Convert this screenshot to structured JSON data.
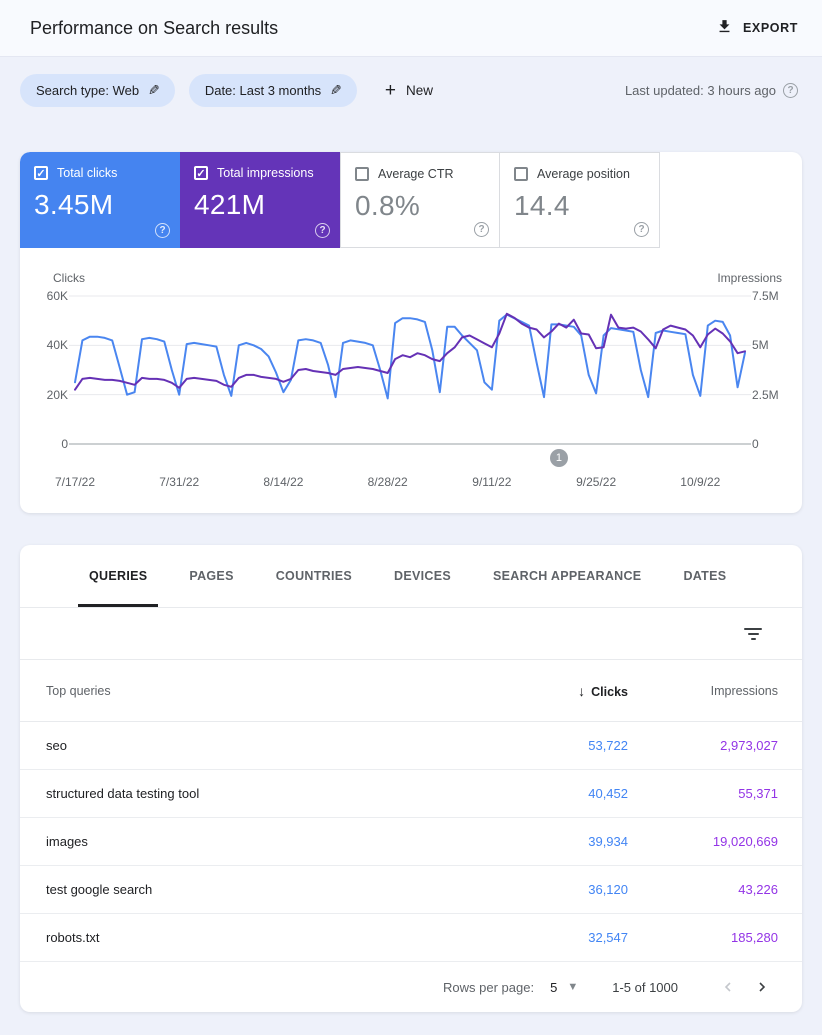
{
  "header": {
    "title": "Performance on Search results",
    "export_label": "EXPORT"
  },
  "filters": {
    "search_type_chip": "Search type: Web",
    "date_chip": "Date: Last 3 months",
    "new_label": "New",
    "last_updated": "Last updated: 3 hours ago"
  },
  "metrics": {
    "items": [
      {
        "label": "Total clicks",
        "value": "3.45M",
        "selected": true,
        "color": "#4584f0"
      },
      {
        "label": "Total impressions",
        "value": "421M",
        "selected": true,
        "color": "#6434b8"
      },
      {
        "label": "Average CTR",
        "value": "0.8%",
        "selected": false,
        "color": "#ffffff"
      },
      {
        "label": "Average position",
        "value": "14.4",
        "selected": false,
        "color": "#ffffff"
      }
    ]
  },
  "chart_data": {
    "type": "line",
    "x_tick_labels": [
      "7/17/22",
      "7/31/22",
      "8/14/22",
      "8/28/22",
      "9/11/22",
      "9/25/22",
      "10/9/22"
    ],
    "x_range_days": 91,
    "left_axis": {
      "title": "Clicks",
      "ticks": [
        "60K",
        "40K",
        "20K",
        "0"
      ],
      "max": 60000
    },
    "right_axis": {
      "title": "Impressions",
      "ticks": [
        "7.5M",
        "5M",
        "2.5M",
        "0"
      ],
      "max": 7500000
    },
    "grid": "horizontal-only",
    "legend_position": "none",
    "annotation_badge": "1",
    "annotation_day_index": 65,
    "series": [
      {
        "name": "Total clicks",
        "axis": "left",
        "color": "#4a86f0",
        "values": [
          25000,
          42000,
          43500,
          43500,
          43000,
          42000,
          31000,
          20000,
          21000,
          42500,
          43000,
          42500,
          41500,
          30000,
          20000,
          40500,
          41000,
          40500,
          40000,
          39500,
          28000,
          19500,
          40000,
          41000,
          40000,
          38500,
          35500,
          29000,
          21000,
          26000,
          42000,
          42500,
          42000,
          41000,
          32000,
          19000,
          41000,
          42000,
          41500,
          41000,
          40000,
          30000,
          18500,
          49000,
          51000,
          51000,
          50500,
          49500,
          38000,
          21000,
          47500,
          47500,
          44000,
          41000,
          38000,
          25000,
          22000,
          50000,
          52500,
          51000,
          49500,
          48000,
          33000,
          19000,
          48500,
          48500,
          48000,
          47500,
          44000,
          28000,
          20500,
          44000,
          47000,
          46500,
          46000,
          45500,
          30000,
          19000,
          45000,
          46000,
          45500,
          45000,
          44500,
          28000,
          19500,
          48000,
          50000,
          49500,
          44000,
          23000,
          37000
        ]
      },
      {
        "name": "Total impressions",
        "axis": "right",
        "color": "#6531b5",
        "values": [
          2750000,
          3300000,
          3350000,
          3300000,
          3250000,
          3250000,
          3200000,
          3100000,
          3000000,
          3350000,
          3300000,
          3300000,
          3250000,
          3100000,
          2850000,
          3300000,
          3350000,
          3300000,
          3250000,
          3200000,
          3000000,
          2900000,
          3350000,
          3500000,
          3500000,
          3400000,
          3350000,
          3300000,
          3150000,
          3300000,
          3750000,
          3800000,
          3700000,
          3650000,
          3600000,
          3500000,
          3800000,
          3850000,
          3900000,
          3850000,
          3800000,
          3700000,
          3600000,
          4300000,
          4500000,
          4400000,
          4600000,
          4500000,
          4300000,
          4200000,
          4600000,
          4900000,
          5400000,
          5500000,
          5300000,
          5100000,
          4900000,
          5600000,
          6600000,
          6400000,
          6100000,
          5900000,
          5800000,
          5400000,
          5700000,
          6100000,
          5900000,
          6300000,
          5600000,
          5550000,
          4850000,
          4900000,
          6550000,
          5900000,
          5850000,
          5900000,
          5700000,
          5300000,
          4850000,
          5800000,
          6000000,
          5900000,
          5800000,
          5500000,
          4900000,
          5550000,
          5850000,
          5600000,
          5200000,
          4600000,
          4700000
        ]
      }
    ]
  },
  "tabs": {
    "items": [
      {
        "label": "QUERIES",
        "active": true
      },
      {
        "label": "PAGES",
        "active": false
      },
      {
        "label": "COUNTRIES",
        "active": false
      },
      {
        "label": "DEVICES",
        "active": false
      },
      {
        "label": "SEARCH APPEARANCE",
        "active": false
      },
      {
        "label": "DATES",
        "active": false
      }
    ]
  },
  "table": {
    "header": {
      "queries": "Top queries",
      "clicks": "Clicks",
      "impressions": "Impressions",
      "sort_arrow": "↓"
    },
    "rows": [
      {
        "query": "seo",
        "clicks": "53,722",
        "impressions": "2,973,027"
      },
      {
        "query": "structured data testing tool",
        "clicks": "40,452",
        "impressions": "55,371"
      },
      {
        "query": "images",
        "clicks": "39,934",
        "impressions": "19,020,669"
      },
      {
        "query": "test google search",
        "clicks": "36,120",
        "impressions": "43,226"
      },
      {
        "query": "robots.txt",
        "clicks": "32,547",
        "impressions": "185,280"
      }
    ]
  },
  "pagination": {
    "rows_per_page_label": "Rows per page:",
    "rows_per_page_value": "5",
    "range_label": "1-5 of 1000"
  }
}
